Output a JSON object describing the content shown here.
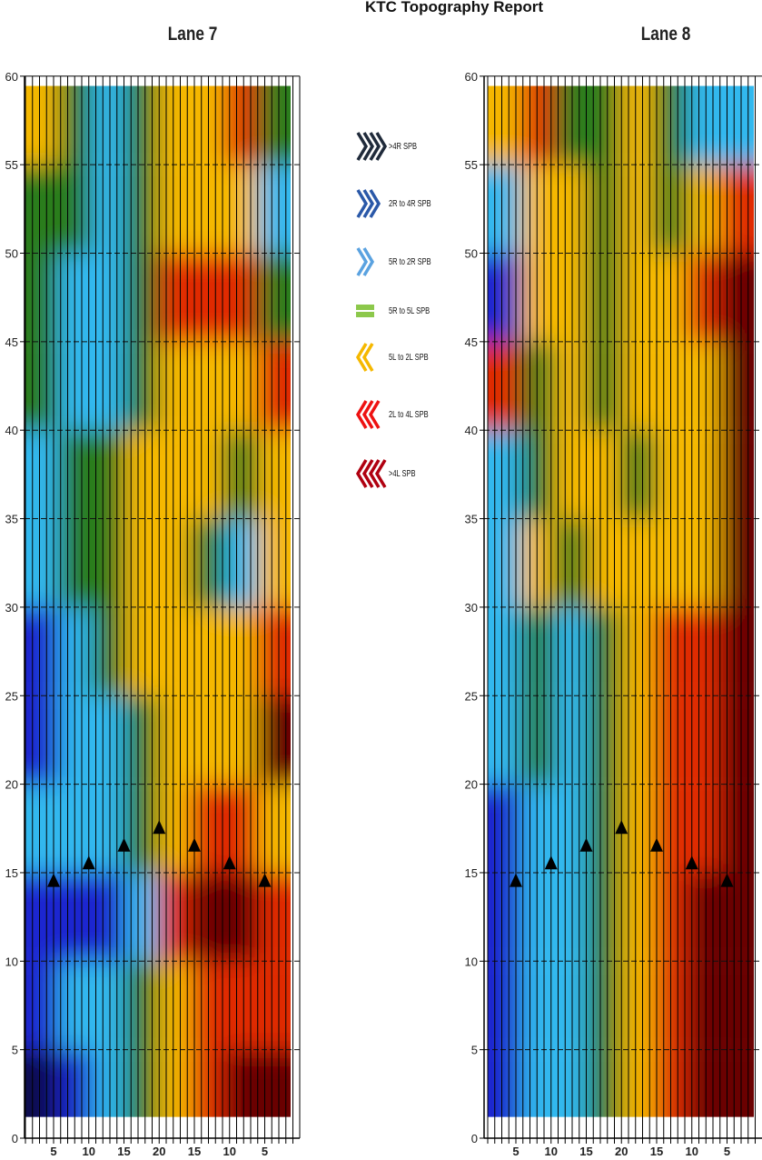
{
  "report_title": "KTC Topography Report",
  "legend": [
    {
      "label": ">4R SPB",
      "color": "#1f2a3a",
      "shape": "chevron-right",
      "count": 4
    },
    {
      "label": "2R to 4R SPB",
      "color": "#2a58a8",
      "shape": "chevron-right",
      "count": 3
    },
    {
      "label": "5R to 2R SPB",
      "color": "#5aa2e0",
      "shape": "chevron-right",
      "count": 2
    },
    {
      "label": "5R to 5L SPB",
      "color": "#8cc84b",
      "shape": "equals",
      "count": 1
    },
    {
      "label": "5L to 2L SPB",
      "color": "#f5b800",
      "shape": "chevron-left",
      "count": 2
    },
    {
      "label": "2L to 4L SPB",
      "color": "#ee1111",
      "shape": "chevron-left",
      "count": 3
    },
    {
      "label": ">4L SPB",
      "color": "#b00010",
      "shape": "chevron-left",
      "count": 4
    }
  ],
  "level_colors": {
    "-3": "#0a0a50",
    "-2": "#1a28d0",
    "-1": "#30b8ee",
    "0": "#2c7d1c",
    "1": "#f5b800",
    "2": "#e02a00",
    "3": "#6a0000"
  },
  "chart_data": [
    {
      "type": "heatmap",
      "title": "Lane 7",
      "ylim": [
        0,
        60
      ],
      "yticks": [
        0,
        5,
        10,
        15,
        20,
        25,
        30,
        35,
        40,
        45,
        50,
        55,
        60
      ],
      "xtick_labels": [
        "5",
        "10",
        "15",
        "20",
        "15",
        "10",
        "5"
      ],
      "grid": "on",
      "row_bands_top_to_bottom": [
        "55-60",
        "50-55",
        "45-50",
        "40-45",
        "35-40",
        "30-35",
        "25-30",
        "20-25",
        "15-20",
        "10-15",
        "5-10",
        "0-5"
      ],
      "levels": [
        [
          1,
          0,
          -1,
          0,
          1,
          1,
          2,
          0
        ],
        [
          0,
          0,
          -1,
          0,
          1,
          1,
          1,
          -1
        ],
        [
          0,
          -1,
          -1,
          0,
          2,
          2,
          2,
          0
        ],
        [
          0,
          -1,
          -1,
          0,
          1,
          1,
          1,
          2
        ],
        [
          -1,
          0,
          0,
          1,
          1,
          1,
          0,
          1
        ],
        [
          -1,
          0,
          0,
          1,
          1,
          0,
          -1,
          1
        ],
        [
          -2,
          -1,
          0,
          1,
          1,
          1,
          1,
          2
        ],
        [
          -2,
          -1,
          -1,
          0,
          1,
          1,
          1,
          3
        ],
        [
          -1,
          -1,
          -1,
          0,
          1,
          2,
          2,
          1
        ],
        [
          -2,
          -2,
          -2,
          -1,
          2,
          3,
          3,
          2
        ],
        [
          -2,
          -1,
          -1,
          0,
          1,
          2,
          2,
          2
        ],
        [
          -3,
          -2,
          -1,
          0,
          1,
          2,
          3,
          3
        ]
      ],
      "markers": [
        {
          "x": "5",
          "y": 14.5
        },
        {
          "x": "10",
          "y": 15.5
        },
        {
          "x": "15",
          "y": 16.5
        },
        {
          "x": "20",
          "y": 17.5
        },
        {
          "x": "15",
          "y": 16.5
        },
        {
          "x": "10",
          "y": 15.5
        },
        {
          "x": "5",
          "y": 14.5
        }
      ]
    },
    {
      "type": "heatmap",
      "title": "Lane 8",
      "ylim": [
        0,
        60
      ],
      "yticks": [
        0,
        5,
        10,
        15,
        20,
        25,
        30,
        35,
        40,
        45,
        50,
        55,
        60
      ],
      "xtick_labels": [
        "5",
        "10",
        "15",
        "20",
        "15",
        "10",
        "5"
      ],
      "grid": "on",
      "row_bands_top_to_bottom": [
        "55-60",
        "50-55",
        "45-50",
        "40-45",
        "35-40",
        "30-35",
        "25-30",
        "20-25",
        "15-20",
        "10-15",
        "5-10",
        "0-5"
      ],
      "levels": [
        [
          1,
          2,
          0,
          0,
          1,
          0,
          -1,
          -1
        ],
        [
          -1,
          1,
          1,
          0,
          1,
          0,
          1,
          2
        ],
        [
          -2,
          1,
          1,
          0,
          1,
          1,
          2,
          3
        ],
        [
          2,
          0,
          1,
          0,
          1,
          1,
          1,
          3
        ],
        [
          -1,
          0,
          1,
          1,
          0,
          1,
          1,
          3
        ],
        [
          -1,
          1,
          0,
          1,
          1,
          1,
          1,
          3
        ],
        [
          -1,
          0,
          -1,
          0,
          1,
          2,
          2,
          3
        ],
        [
          -1,
          0,
          -1,
          0,
          1,
          2,
          2,
          3
        ],
        [
          -2,
          -1,
          -1,
          0,
          1,
          2,
          2,
          3
        ],
        [
          -2,
          -1,
          -1,
          0,
          1,
          2,
          3,
          3
        ],
        [
          -2,
          -1,
          -1,
          0,
          1,
          2,
          3,
          3
        ],
        [
          -2,
          -1,
          -1,
          0,
          1,
          2,
          3,
          3
        ]
      ],
      "markers": [
        {
          "x": "5",
          "y": 14.5
        },
        {
          "x": "10",
          "y": 15.5
        },
        {
          "x": "15",
          "y": 16.5
        },
        {
          "x": "20",
          "y": 17.5
        },
        {
          "x": "15",
          "y": 16.5
        },
        {
          "x": "10",
          "y": 15.5
        },
        {
          "x": "5",
          "y": 14.5
        }
      ]
    }
  ]
}
